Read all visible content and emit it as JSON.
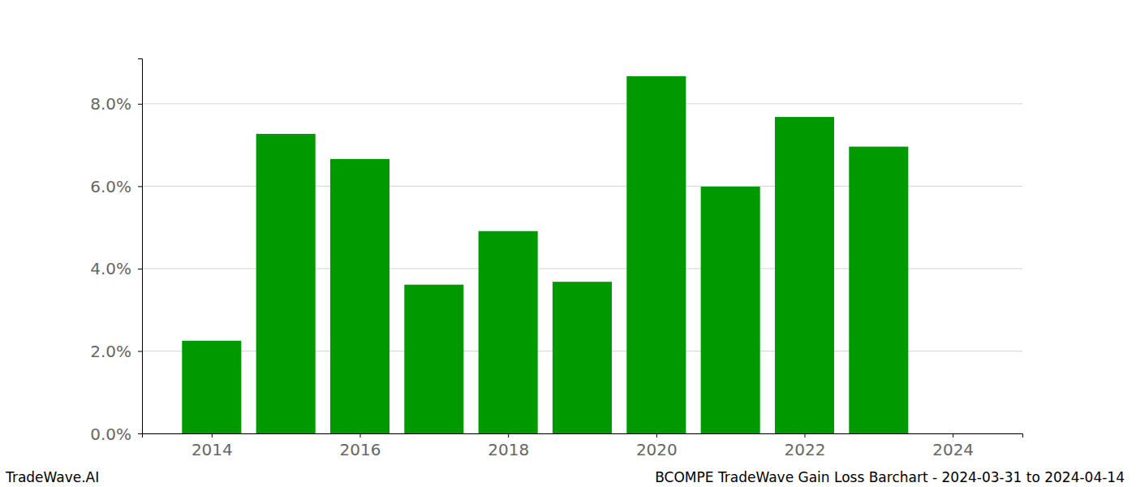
{
  "chart_data": {
    "type": "bar",
    "title": "BCOMPE TradeWave Gain Loss Barchart - 2024-03-31 to 2024-04-14",
    "annotations": [
      "TradeWave.AI"
    ],
    "x": [
      2014,
      2015,
      2016,
      2017,
      2018,
      2019,
      2020,
      2021,
      2022,
      2023,
      2024
    ],
    "values": [
      2.25,
      7.27,
      6.66,
      3.61,
      4.91,
      3.68,
      8.67,
      5.99,
      7.68,
      6.96,
      0
    ],
    "color": "#009900",
    "xlim": [
      2013.06,
      2024.94
    ],
    "xticks": [
      2014,
      2016,
      2018,
      2020,
      2022,
      2024
    ],
    "ylim": [
      0,
      9.1
    ],
    "yticks": [
      {
        "value": 0,
        "label": "0.0%"
      },
      {
        "value": 2,
        "label": "2.0%"
      },
      {
        "value": 4,
        "label": "4.0%"
      },
      {
        "value": 6,
        "label": "6.0%"
      },
      {
        "value": 8,
        "label": "8.0%"
      }
    ],
    "grid": true
  }
}
